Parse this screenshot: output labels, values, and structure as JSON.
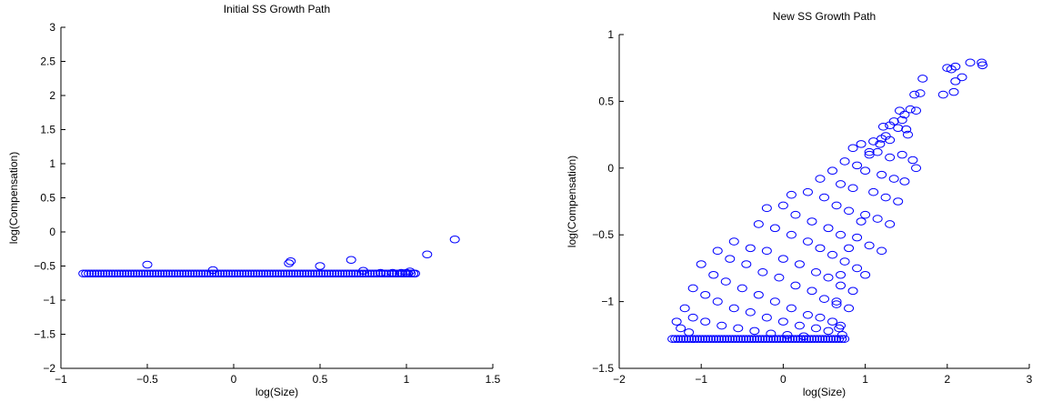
{
  "chart_data": [
    {
      "type": "scatter",
      "title": "Initial SS Growth Path",
      "xlabel": "log(Size)",
      "ylabel": "log(Compensation)",
      "xlim": [
        -1,
        1.5
      ],
      "ylim": [
        -2,
        3
      ],
      "xticks": [
        -1,
        -0.5,
        0,
        0.5,
        1,
        1.5
      ],
      "yticks": [
        -2,
        -1.5,
        -1,
        -0.5,
        0,
        0.5,
        1,
        1.5,
        2,
        2.5,
        3
      ],
      "xtick_labels": [
        "−1",
        "−0.5",
        "0",
        "0.5",
        "1",
        "1.5"
      ],
      "ytick_labels": [
        "−2",
        "−1.5",
        "−1",
        "−0.5",
        "0",
        "0.5",
        "1",
        "1.5",
        "2",
        "2.5",
        "3"
      ],
      "grid": false,
      "marker": "circle-open",
      "marker_color": "#0000ff",
      "series": [
        {
          "points": [
            [
              -0.5,
              -0.48
            ],
            [
              -0.12,
              -0.56
            ],
            [
              0.32,
              -0.46
            ],
            [
              0.33,
              -0.43
            ],
            [
              0.5,
              -0.5
            ],
            [
              0.68,
              -0.41
            ],
            [
              0.75,
              -0.57
            ],
            [
              0.85,
              -0.6
            ],
            [
              0.92,
              -0.6
            ],
            [
              0.97,
              -0.6
            ],
            [
              1.0,
              -0.6
            ],
            [
              1.02,
              -0.58
            ],
            [
              1.05,
              -0.61
            ],
            [
              1.12,
              -0.33
            ],
            [
              1.28,
              -0.11
            ]
          ],
          "band": {
            "x_from": -0.87,
            "x_to": 1.05,
            "y": -0.61
          }
        }
      ]
    },
    {
      "type": "scatter",
      "title": "New SS Growth Path",
      "xlabel": "log(Size)",
      "ylabel": "log(Compensation)",
      "xlim": [
        -2,
        3
      ],
      "ylim": [
        -1.5,
        1
      ],
      "xticks": [
        -2,
        -1,
        0,
        1,
        2,
        3
      ],
      "yticks": [
        -1.5,
        -1,
        -0.5,
        0,
        0.5,
        1
      ],
      "xtick_labels": [
        "−2",
        "−1",
        "0",
        "1",
        "2",
        "3"
      ],
      "ytick_labels": [
        "−1.5",
        "−1",
        "−0.5",
        "0",
        "0.5",
        "1"
      ],
      "grid": false,
      "marker": "circle-open",
      "marker_color": "#0000ff",
      "series": [
        {
          "points": [
            [
              2.42,
              0.79
            ],
            [
              2.43,
              0.77
            ],
            [
              2.28,
              0.79
            ],
            [
              2.1,
              0.76
            ],
            [
              2.05,
              0.74
            ],
            [
              2.0,
              0.75
            ],
            [
              2.18,
              0.68
            ],
            [
              2.1,
              0.65
            ],
            [
              2.08,
              0.57
            ],
            [
              1.95,
              0.55
            ],
            [
              1.7,
              0.67
            ],
            [
              1.67,
              0.56
            ],
            [
              1.6,
              0.55
            ],
            [
              1.55,
              0.44
            ],
            [
              1.62,
              0.43
            ],
            [
              1.42,
              0.43
            ],
            [
              1.48,
              0.4
            ],
            [
              1.45,
              0.36
            ],
            [
              1.35,
              0.35
            ],
            [
              1.3,
              0.32
            ],
            [
              1.22,
              0.31
            ],
            [
              1.5,
              0.29
            ],
            [
              1.52,
              0.25
            ],
            [
              1.3,
              0.21
            ],
            [
              1.25,
              0.24
            ],
            [
              1.18,
              0.18
            ],
            [
              1.1,
              0.2
            ],
            [
              0.95,
              0.18
            ],
            [
              0.85,
              0.15
            ],
            [
              1.05,
              0.1
            ],
            [
              1.15,
              0.12
            ],
            [
              1.3,
              0.08
            ],
            [
              1.45,
              0.1
            ],
            [
              1.58,
              0.06
            ],
            [
              1.62,
              0.0
            ],
            [
              0.9,
              0.02
            ],
            [
              1.0,
              -0.02
            ],
            [
              1.2,
              -0.05
            ],
            [
              1.35,
              -0.08
            ],
            [
              1.48,
              -0.1
            ],
            [
              0.7,
              -0.12
            ],
            [
              0.85,
              -0.15
            ],
            [
              1.1,
              -0.18
            ],
            [
              1.25,
              -0.22
            ],
            [
              1.4,
              -0.25
            ],
            [
              0.3,
              -0.18
            ],
            [
              0.5,
              -0.22
            ],
            [
              0.65,
              -0.28
            ],
            [
              0.8,
              -0.32
            ],
            [
              1.0,
              -0.35
            ],
            [
              1.15,
              -0.38
            ],
            [
              1.3,
              -0.42
            ],
            [
              0.0,
              -0.28
            ],
            [
              0.15,
              -0.35
            ],
            [
              0.35,
              -0.4
            ],
            [
              0.55,
              -0.45
            ],
            [
              0.7,
              -0.5
            ],
            [
              0.9,
              -0.52
            ],
            [
              1.05,
              -0.58
            ],
            [
              1.2,
              -0.62
            ],
            [
              -0.3,
              -0.42
            ],
            [
              -0.1,
              -0.45
            ],
            [
              0.1,
              -0.5
            ],
            [
              0.3,
              -0.55
            ],
            [
              0.45,
              -0.6
            ],
            [
              0.6,
              -0.65
            ],
            [
              0.75,
              -0.7
            ],
            [
              0.9,
              -0.75
            ],
            [
              1.0,
              -0.8
            ],
            [
              -0.6,
              -0.55
            ],
            [
              -0.4,
              -0.6
            ],
            [
              -0.2,
              -0.62
            ],
            [
              0.0,
              -0.68
            ],
            [
              0.2,
              -0.72
            ],
            [
              0.4,
              -0.78
            ],
            [
              0.55,
              -0.82
            ],
            [
              0.7,
              -0.88
            ],
            [
              0.85,
              -0.92
            ],
            [
              -0.8,
              -0.62
            ],
            [
              -0.65,
              -0.68
            ],
            [
              -0.45,
              -0.72
            ],
            [
              -0.25,
              -0.78
            ],
            [
              -0.05,
              -0.82
            ],
            [
              0.15,
              -0.88
            ],
            [
              0.35,
              -0.92
            ],
            [
              0.5,
              -0.98
            ],
            [
              0.65,
              -1.02
            ],
            [
              0.8,
              -1.05
            ],
            [
              -1.0,
              -0.72
            ],
            [
              -0.85,
              -0.8
            ],
            [
              -0.7,
              -0.85
            ],
            [
              -0.5,
              -0.9
            ],
            [
              -0.3,
              -0.95
            ],
            [
              -0.1,
              -1.0
            ],
            [
              0.1,
              -1.05
            ],
            [
              0.3,
              -1.1
            ],
            [
              0.45,
              -1.12
            ],
            [
              0.6,
              -1.15
            ],
            [
              0.7,
              -1.18
            ],
            [
              -1.1,
              -0.9
            ],
            [
              -0.95,
              -0.95
            ],
            [
              -0.8,
              -1.0
            ],
            [
              -0.6,
              -1.05
            ],
            [
              -0.4,
              -1.08
            ],
            [
              -0.2,
              -1.12
            ],
            [
              0.0,
              -1.15
            ],
            [
              0.2,
              -1.18
            ],
            [
              0.4,
              -1.2
            ],
            [
              0.55,
              -1.22
            ],
            [
              -1.2,
              -1.05
            ],
            [
              -1.1,
              -1.12
            ],
            [
              -0.95,
              -1.15
            ],
            [
              -0.75,
              -1.18
            ],
            [
              -0.55,
              -1.2
            ],
            [
              -0.35,
              -1.22
            ],
            [
              -0.15,
              -1.24
            ],
            [
              0.05,
              -1.25
            ],
            [
              0.25,
              -1.26
            ],
            [
              -1.3,
              -1.15
            ],
            [
              -1.25,
              -1.2
            ],
            [
              -1.15,
              -1.23
            ],
            [
              -0.2,
              -0.3
            ],
            [
              0.1,
              -0.2
            ],
            [
              0.45,
              -0.08
            ],
            [
              0.6,
              -0.02
            ],
            [
              0.75,
              0.05
            ],
            [
              1.4,
              0.3
            ],
            [
              1.05,
              0.12
            ],
            [
              1.2,
              0.22
            ],
            [
              0.95,
              -0.4
            ],
            [
              0.8,
              -0.6
            ],
            [
              0.7,
              -0.8
            ],
            [
              0.65,
              -1.0
            ],
            [
              0.68,
              -1.2
            ],
            [
              0.72,
              -1.25
            ]
          ],
          "band": {
            "x_from": -1.35,
            "x_to": 0.75,
            "y": -1.28
          }
        }
      ]
    }
  ]
}
